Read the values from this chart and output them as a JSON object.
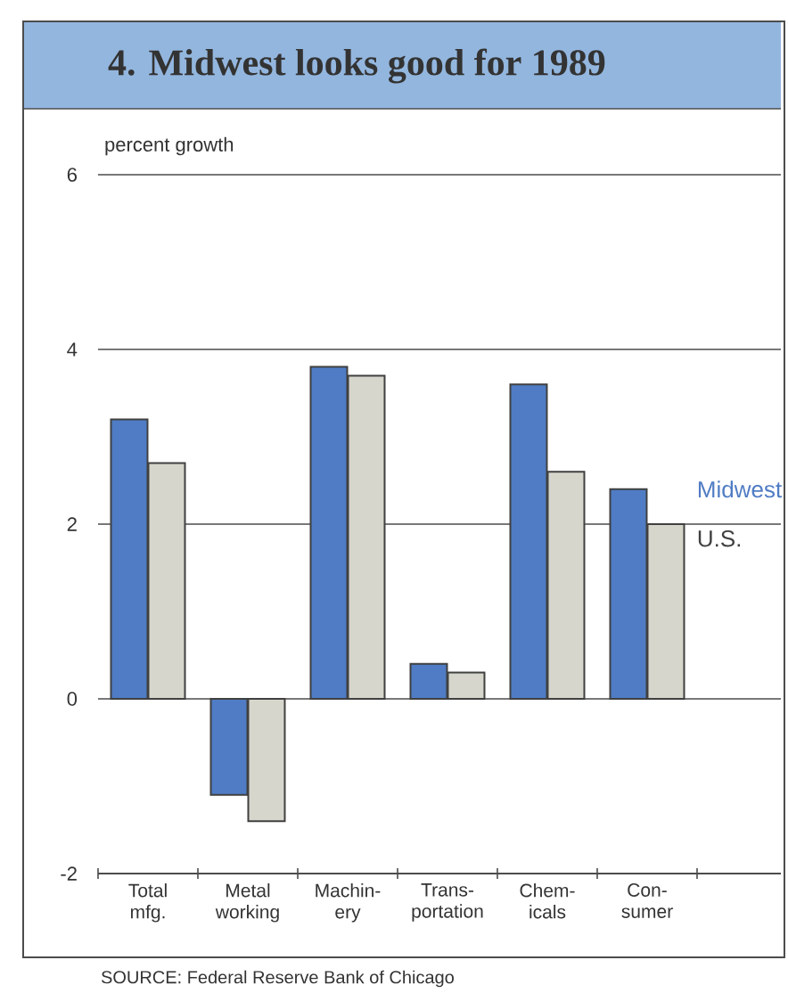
{
  "chart_data": {
    "type": "bar",
    "title": "4. Midwest looks good for 1989",
    "ylabel": "percent growth",
    "categories": [
      "Total mfg.",
      "Metal working",
      "Machin- ery",
      "Trans- portation",
      "Chem- icals",
      "Con- sumer"
    ],
    "series": [
      {
        "name": "Midwest",
        "color": "#4f7cc4",
        "values": [
          3.2,
          -1.1,
          3.8,
          0.4,
          3.6,
          2.4
        ]
      },
      {
        "name": "U.S.",
        "color": "#d6d6cc",
        "values": [
          2.7,
          -1.4,
          3.7,
          0.3,
          2.6,
          2.0
        ]
      }
    ],
    "ylim": [
      -2,
      6
    ],
    "yticks": [
      -2,
      0,
      2,
      4,
      6
    ],
    "grid": "y",
    "legend": "right",
    "annotations": [
      "SOURCE: Federal Reserve Bank of Chicago"
    ]
  }
}
